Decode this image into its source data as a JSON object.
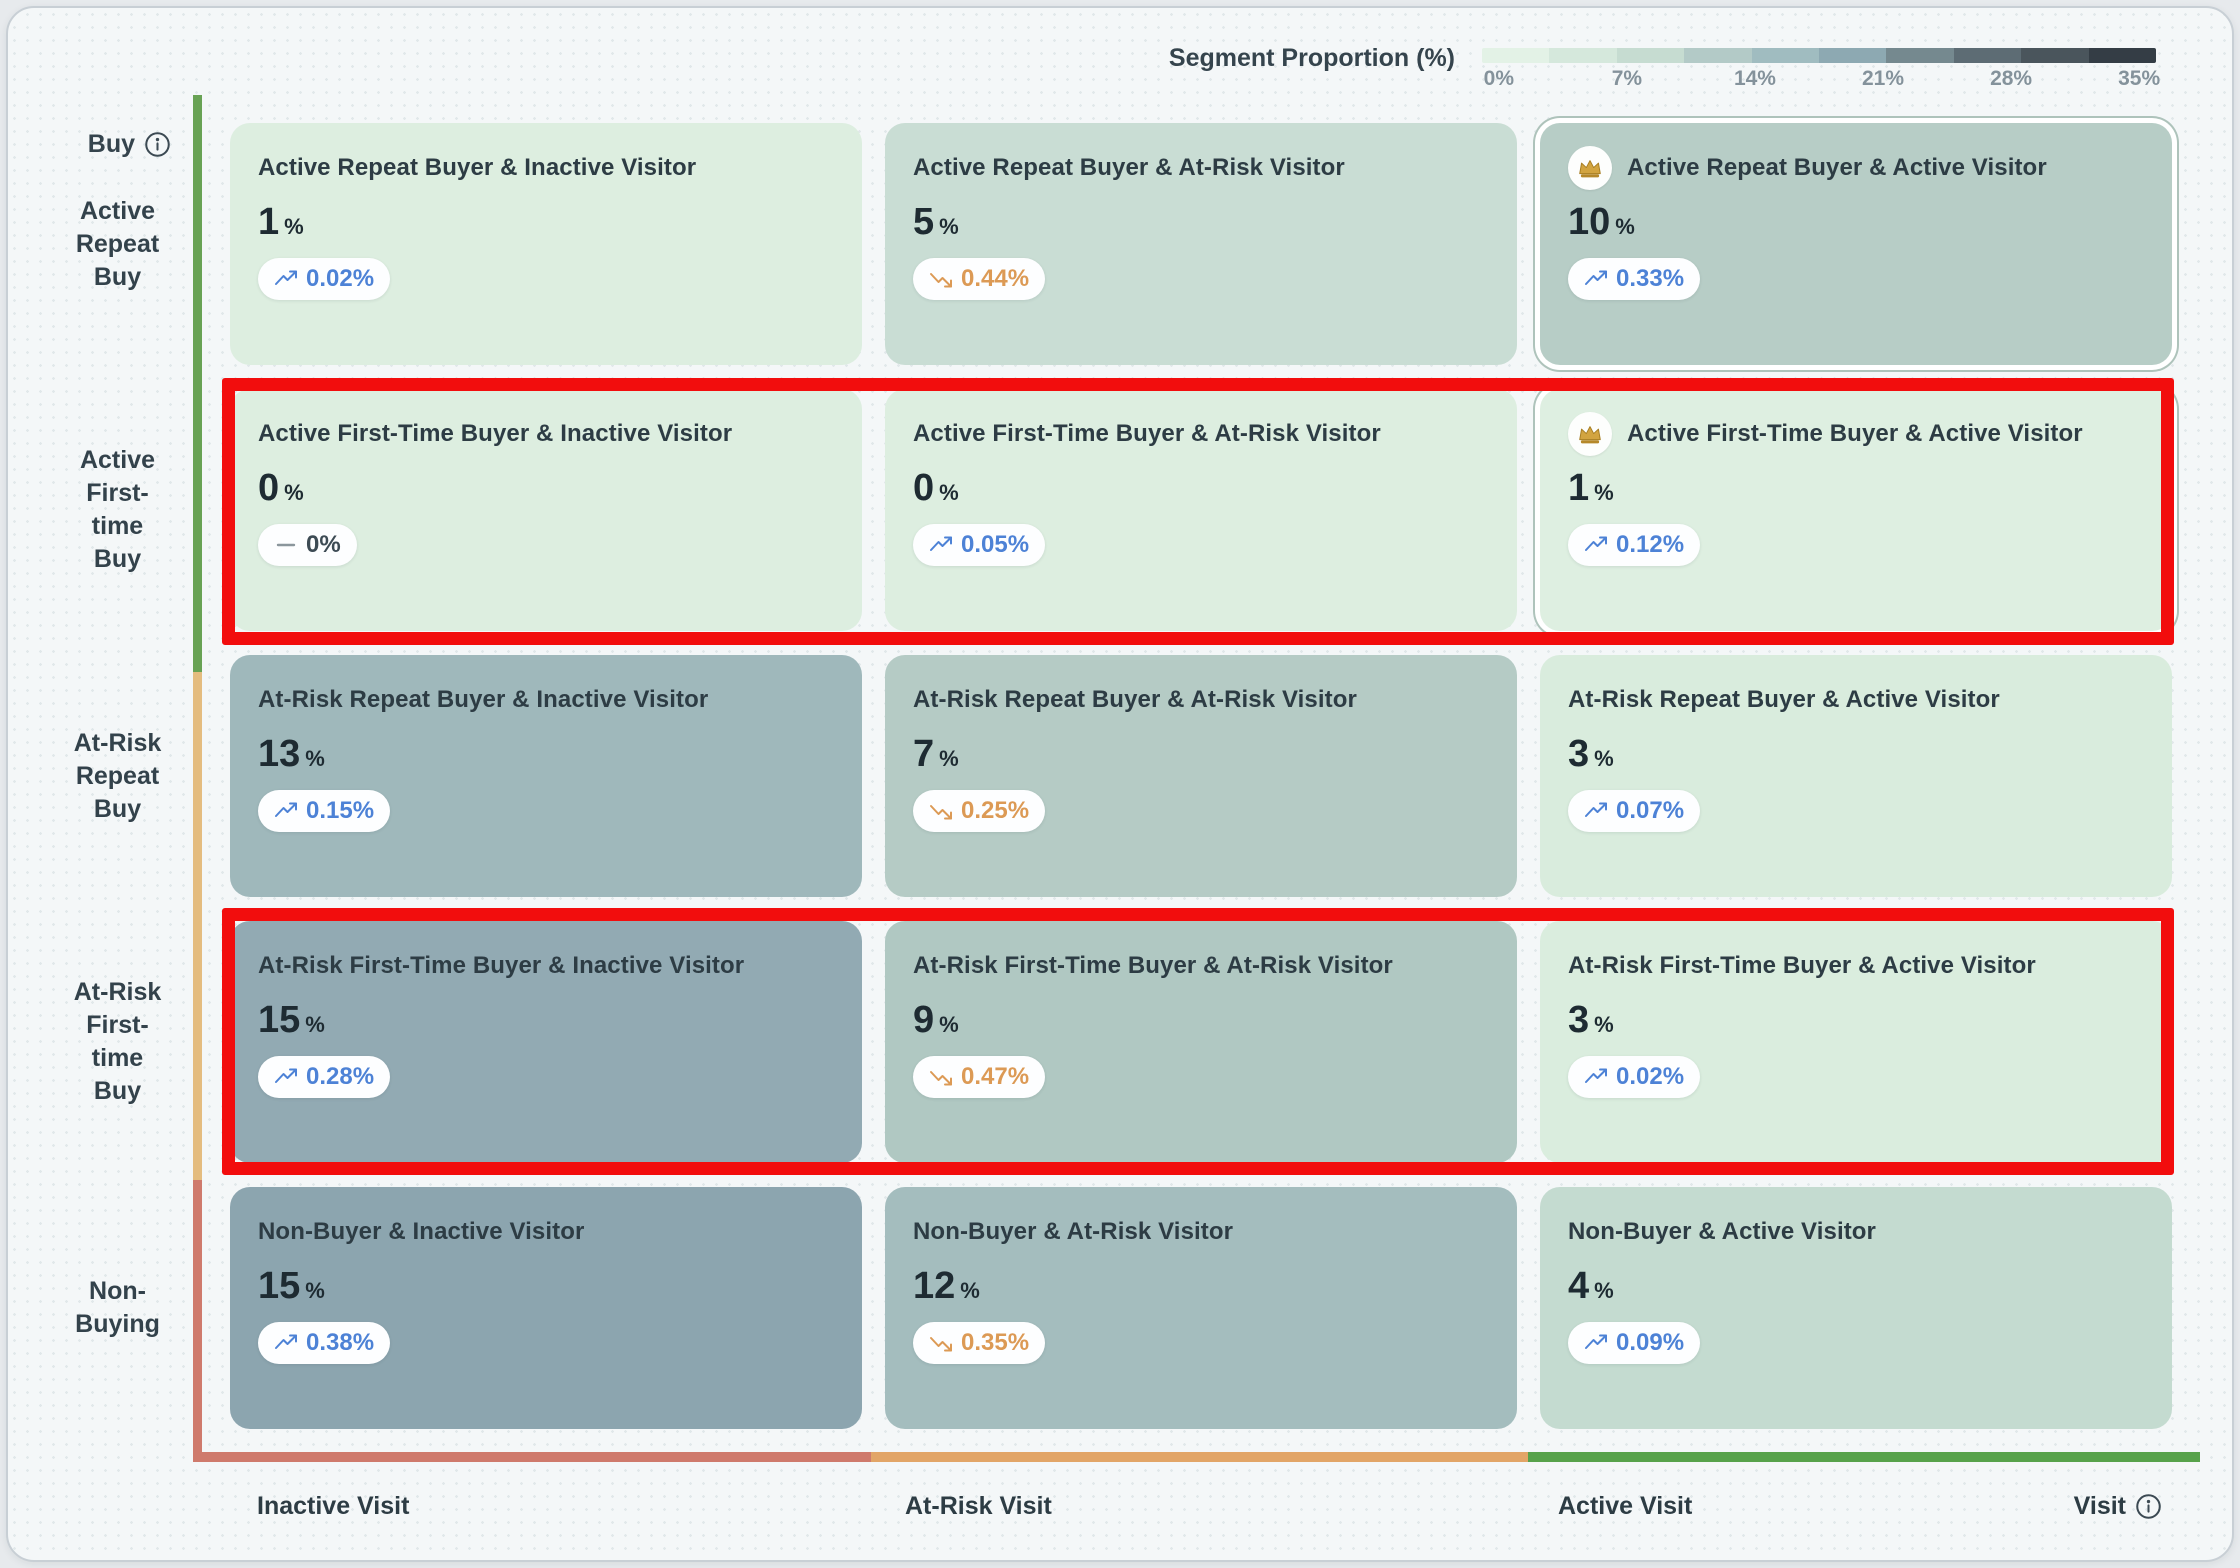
{
  "legend": {
    "title": "Segment Proportion (%)",
    "ticks": [
      "0%",
      "7%",
      "14%",
      "21%",
      "28%",
      "35%"
    ],
    "steps": [
      "#e3f2e6",
      "#d5e8dc",
      "#c6dcd1",
      "#b3cac7",
      "#a0bcc0",
      "#8da9b2",
      "#75898f",
      "#5d6c74",
      "#4a555c",
      "#343d45"
    ]
  },
  "axes": {
    "buy_label": "Buy",
    "visit_label": "Visit",
    "row_labels": [
      {
        "name": "active-repeat-buy",
        "lines": [
          "Active",
          "Repeat",
          "Buy"
        ]
      },
      {
        "name": "active-first-time-buy",
        "lines": [
          "Active",
          "First-",
          "time",
          "Buy"
        ]
      },
      {
        "name": "at-risk-repeat-buy",
        "lines": [
          "At-Risk",
          "Repeat",
          "Buy"
        ]
      },
      {
        "name": "at-risk-first-time-buy",
        "lines": [
          "At-Risk",
          "First-",
          "time",
          "Buy"
        ]
      },
      {
        "name": "non-buying",
        "lines": [
          "Non-",
          "Buying"
        ]
      }
    ],
    "col_labels": [
      "Inactive Visit",
      "At-Risk Visit",
      "Active Visit"
    ],
    "y_band_colors": [
      "#68a254",
      "#e4bc7f",
      "#cf7a6c"
    ],
    "x_band_colors": [
      "#cf7a6c",
      "#e2a567",
      "#57a24b"
    ]
  },
  "chart_data": {
    "type": "heatmap",
    "title": "Segment Proportion (%)",
    "x_categories": [
      "Inactive Visit",
      "At-Risk Visit",
      "Active Visit"
    ],
    "y_categories": [
      "Active Repeat Buy",
      "Active First-time Buy",
      "At-Risk Repeat Buy",
      "At-Risk First-time Buy",
      "Non-Buying"
    ],
    "values_pct": [
      [
        1,
        5,
        10
      ],
      [
        0,
        0,
        1
      ],
      [
        13,
        7,
        3
      ],
      [
        15,
        9,
        3
      ],
      [
        15,
        12,
        4
      ]
    ],
    "change_pct": [
      [
        0.02,
        -0.44,
        0.33
      ],
      [
        0.0,
        0.05,
        0.12
      ],
      [
        0.15,
        -0.25,
        0.07
      ],
      [
        0.28,
        -0.47,
        0.02
      ],
      [
        0.38,
        -0.35,
        0.09
      ]
    ],
    "legend_range": [
      0,
      35
    ],
    "legend_ticks": [
      "0%",
      "7%",
      "14%",
      "21%",
      "28%",
      "35%"
    ],
    "legend_position": "top-right",
    "crowned_cells": [
      "Active Repeat Buyer & Active Visitor",
      "Active First-Time Buyer & Active Visitor"
    ],
    "annotated_rows": [
      "Active First-time Buy",
      "At-Risk First-time Buy"
    ]
  },
  "cells": [
    {
      "title": "Active Repeat Buyer & Inactive Visitor",
      "value": "1",
      "unit": "%",
      "change": "0.02%",
      "trend": "up",
      "bg": "#ddeee0",
      "crown": false,
      "selected": false
    },
    {
      "title": "Active Repeat Buyer & At-Risk Visitor",
      "value": "5",
      "unit": "%",
      "change": "0.44%",
      "trend": "down",
      "bg": "#c9ddd4",
      "crown": false,
      "selected": false
    },
    {
      "title": "Active Repeat Buyer & Active Visitor",
      "value": "10",
      "unit": "%",
      "change": "0.33%",
      "trend": "up",
      "bg": "#b7cdc6",
      "crown": true,
      "selected": true
    },
    {
      "title": "Active First-Time Buyer & Inactive Visitor",
      "value": "0",
      "unit": "%",
      "change": "0%",
      "trend": "flat",
      "bg": "#ddeee0",
      "crown": false,
      "selected": false
    },
    {
      "title": "Active First-Time Buyer & At-Risk Visitor",
      "value": "0",
      "unit": "%",
      "change": "0.05%",
      "trend": "up",
      "bg": "#ddeee0",
      "crown": false,
      "selected": false
    },
    {
      "title": "Active First-Time Buyer & Active Visitor",
      "value": "1",
      "unit": "%",
      "change": "0.12%",
      "trend": "up",
      "bg": "#deefe1",
      "crown": true,
      "selected": true
    },
    {
      "title": "At-Risk Repeat Buyer & Inactive Visitor",
      "value": "13",
      "unit": "%",
      "change": "0.15%",
      "trend": "up",
      "bg": "#9fb8bb",
      "crown": false,
      "selected": false
    },
    {
      "title": "At-Risk Repeat Buyer & At-Risk Visitor",
      "value": "7",
      "unit": "%",
      "change": "0.25%",
      "trend": "down",
      "bg": "#b5cbc5",
      "crown": false,
      "selected": false
    },
    {
      "title": "At-Risk Repeat Buyer & Active Visitor",
      "value": "3",
      "unit": "%",
      "change": "0.07%",
      "trend": "up",
      "bg": "#d9ecdd",
      "crown": false,
      "selected": false
    },
    {
      "title": "At-Risk First-Time Buyer & Inactive Visitor",
      "value": "15",
      "unit": "%",
      "change": "0.28%",
      "trend": "up",
      "bg": "#92aab3",
      "crown": false,
      "selected": false
    },
    {
      "title": "At-Risk First-Time Buyer & At-Risk Visitor",
      "value": "9",
      "unit": "%",
      "change": "0.47%",
      "trend": "down",
      "bg": "#b0c8c2",
      "crown": false,
      "selected": false
    },
    {
      "title": "At-Risk First-Time Buyer & Active Visitor",
      "value": "3",
      "unit": "%",
      "change": "0.02%",
      "trend": "up",
      "bg": "#daedde",
      "crown": false,
      "selected": false
    },
    {
      "title": "Non-Buyer & Inactive Visitor",
      "value": "15",
      "unit": "%",
      "change": "0.38%",
      "trend": "up",
      "bg": "#8ca5af",
      "crown": false,
      "selected": false
    },
    {
      "title": "Non-Buyer & At-Risk Visitor",
      "value": "12",
      "unit": "%",
      "change": "0.35%",
      "trend": "down",
      "bg": "#a4bdbe",
      "crown": false,
      "selected": false
    },
    {
      "title": "Non-Buyer & Active Visitor",
      "value": "4",
      "unit": "%",
      "change": "0.09%",
      "trend": "up",
      "bg": "#c4dbd0",
      "crown": false,
      "selected": false
    }
  ]
}
